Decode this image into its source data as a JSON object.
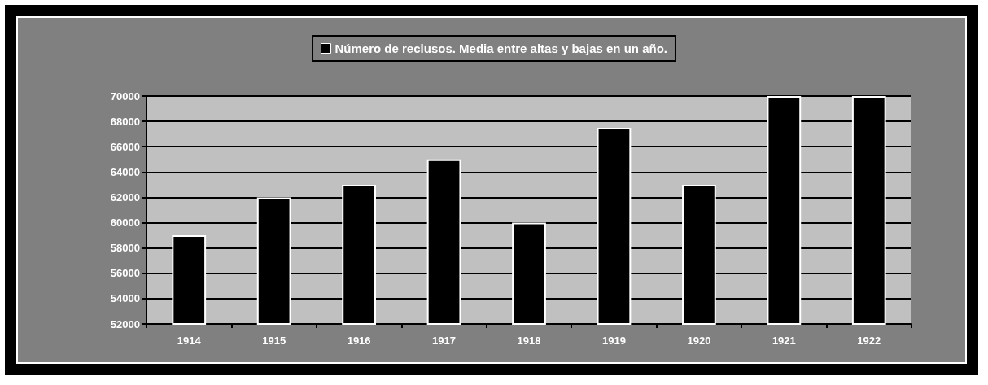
{
  "chart_data": {
    "type": "bar",
    "categories": [
      "1914",
      "1915",
      "1916",
      "1917",
      "1918",
      "1919",
      "1920",
      "1921",
      "1922"
    ],
    "series": [
      {
        "name": "Número de reclusos. Media entre altas y bajas en un año.",
        "color": "#000000",
        "values": [
          59000,
          62000,
          63000,
          65000,
          60000,
          67500,
          63000,
          70000,
          70000
        ]
      }
    ],
    "ylim": [
      52000,
      70000
    ],
    "yticks": [
      52000,
      54000,
      56000,
      58000,
      60000,
      62000,
      64000,
      66000,
      68000,
      70000
    ],
    "grid": "y",
    "legend": "top"
  }
}
